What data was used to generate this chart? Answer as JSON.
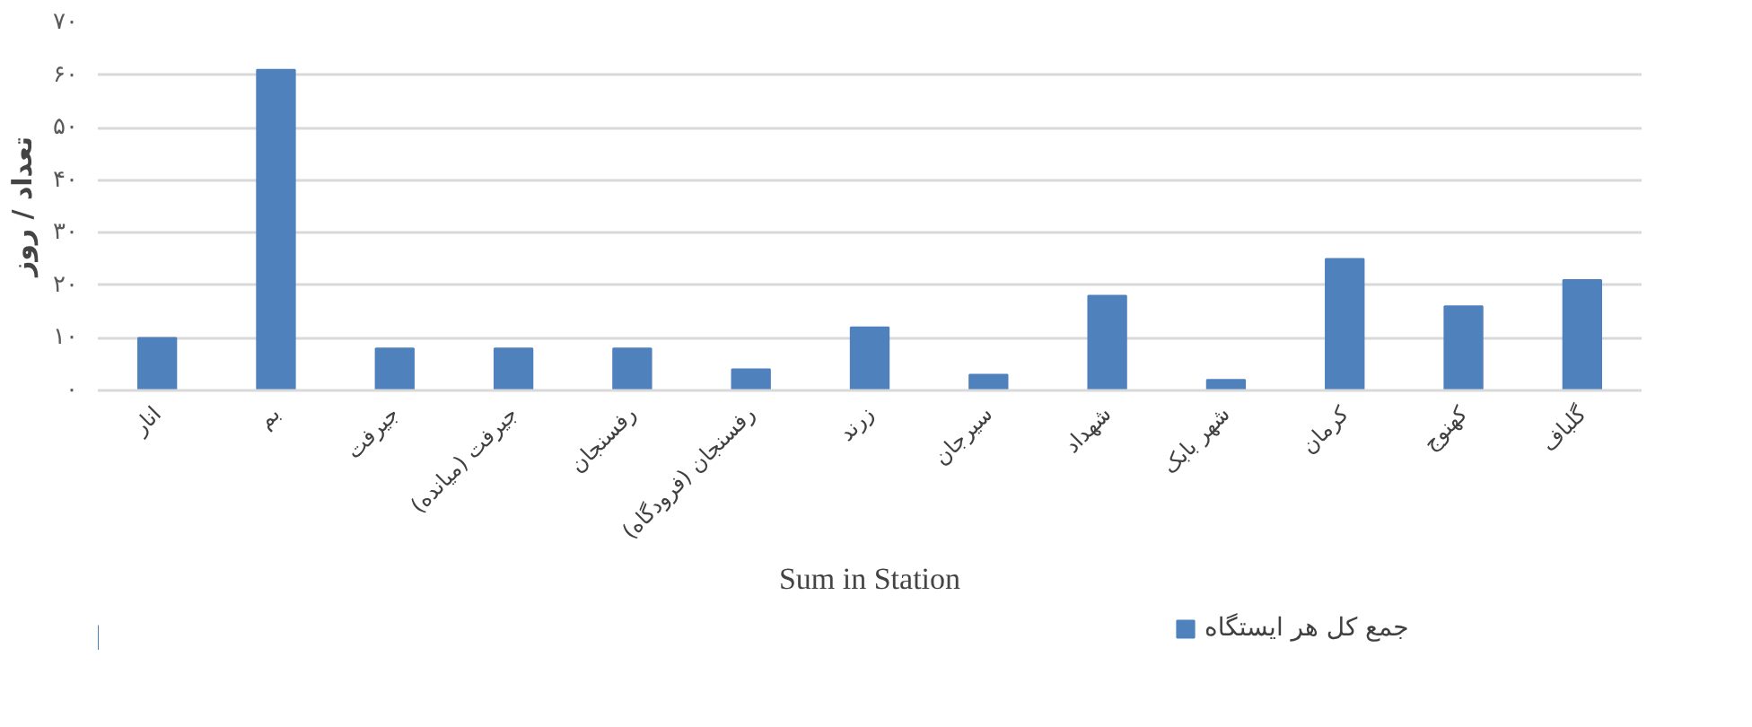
{
  "chart_data": {
    "type": "bar",
    "xlabel": "Sum in Station",
    "ylabel": "تعداد / روز",
    "categories": [
      "انار",
      "بم",
      "جیرفت",
      "جیرفت (میانده)",
      "رفسنجان",
      "رفسنجان (فرودگاه)",
      "زرند",
      "سیرجان",
      "شهداد",
      "شهر بابک",
      "کرمان",
      "کهنوج",
      "گلباف"
    ],
    "series": [
      {
        "name": "جمع کل هر ایستگاه",
        "color": "#4f81bd",
        "values": [
          10,
          61,
          8,
          8,
          8,
          4,
          12,
          3,
          18,
          2,
          25,
          16,
          21
        ]
      }
    ],
    "ylim": [
      0,
      70
    ],
    "yticks": [
      {
        "value": 0,
        "label": "۰"
      },
      {
        "value": 10,
        "label": "۱۰"
      },
      {
        "value": 20,
        "label": "۲۰"
      },
      {
        "value": 30,
        "label": "۳۰"
      },
      {
        "value": 40,
        "label": "۴۰"
      },
      {
        "value": 50,
        "label": "۵۰"
      },
      {
        "value": 60,
        "label": "۶۰"
      },
      {
        "value": 70,
        "label": "۷۰"
      }
    ],
    "grid": "y",
    "legend": "bottom"
  }
}
